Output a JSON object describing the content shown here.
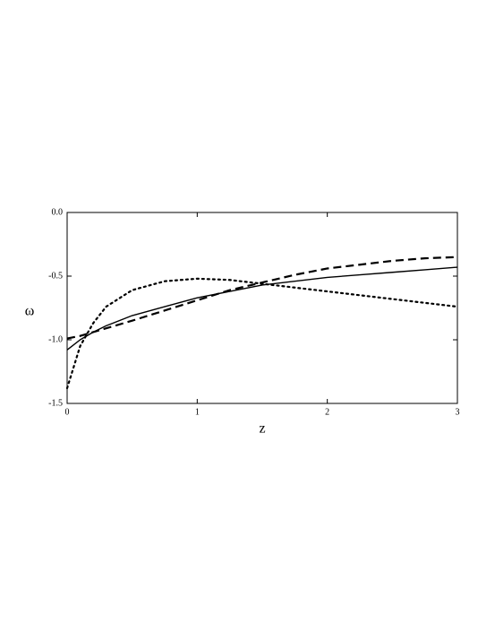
{
  "chart_data": {
    "type": "line",
    "xlabel": "z",
    "ylabel": "ω",
    "x": [
      0,
      0.1,
      0.2,
      0.3,
      0.5,
      0.75,
      1,
      1.25,
      1.5,
      1.75,
      2,
      2.25,
      2.5,
      2.75,
      3
    ],
    "series": [
      {
        "color": "#000000",
        "dash": "solid",
        "values": [
          -1.08,
          -1.0,
          -0.94,
          -0.89,
          -0.81,
          -0.74,
          -0.67,
          -0.62,
          -0.57,
          -0.54,
          -0.51,
          -0.49,
          -0.47,
          -0.45,
          -0.43
        ]
      },
      {
        "color": "#000000",
        "dash": "dashed",
        "values": [
          -0.99,
          -0.97,
          -0.94,
          -0.91,
          -0.85,
          -0.77,
          -0.69,
          -0.61,
          -0.55,
          -0.49,
          -0.44,
          -0.41,
          -0.38,
          -0.36,
          -0.35
        ]
      },
      {
        "color": "#000000",
        "dash": "dotted",
        "values": [
          -1.38,
          -1.05,
          -0.87,
          -0.74,
          -0.61,
          -0.54,
          -0.52,
          -0.53,
          -0.56,
          -0.59,
          -0.62,
          -0.65,
          -0.68,
          -0.71,
          -0.74
        ]
      }
    ],
    "xlim": [
      0,
      3
    ],
    "xticks": [
      0,
      1,
      2,
      3
    ],
    "ylim": [
      -1.5,
      0
    ],
    "yticks": [
      {
        "value": 0,
        "label": "0.0"
      },
      -0.5,
      {
        "value": -1,
        "label": "-1.0"
      },
      -1.5
    ]
  }
}
